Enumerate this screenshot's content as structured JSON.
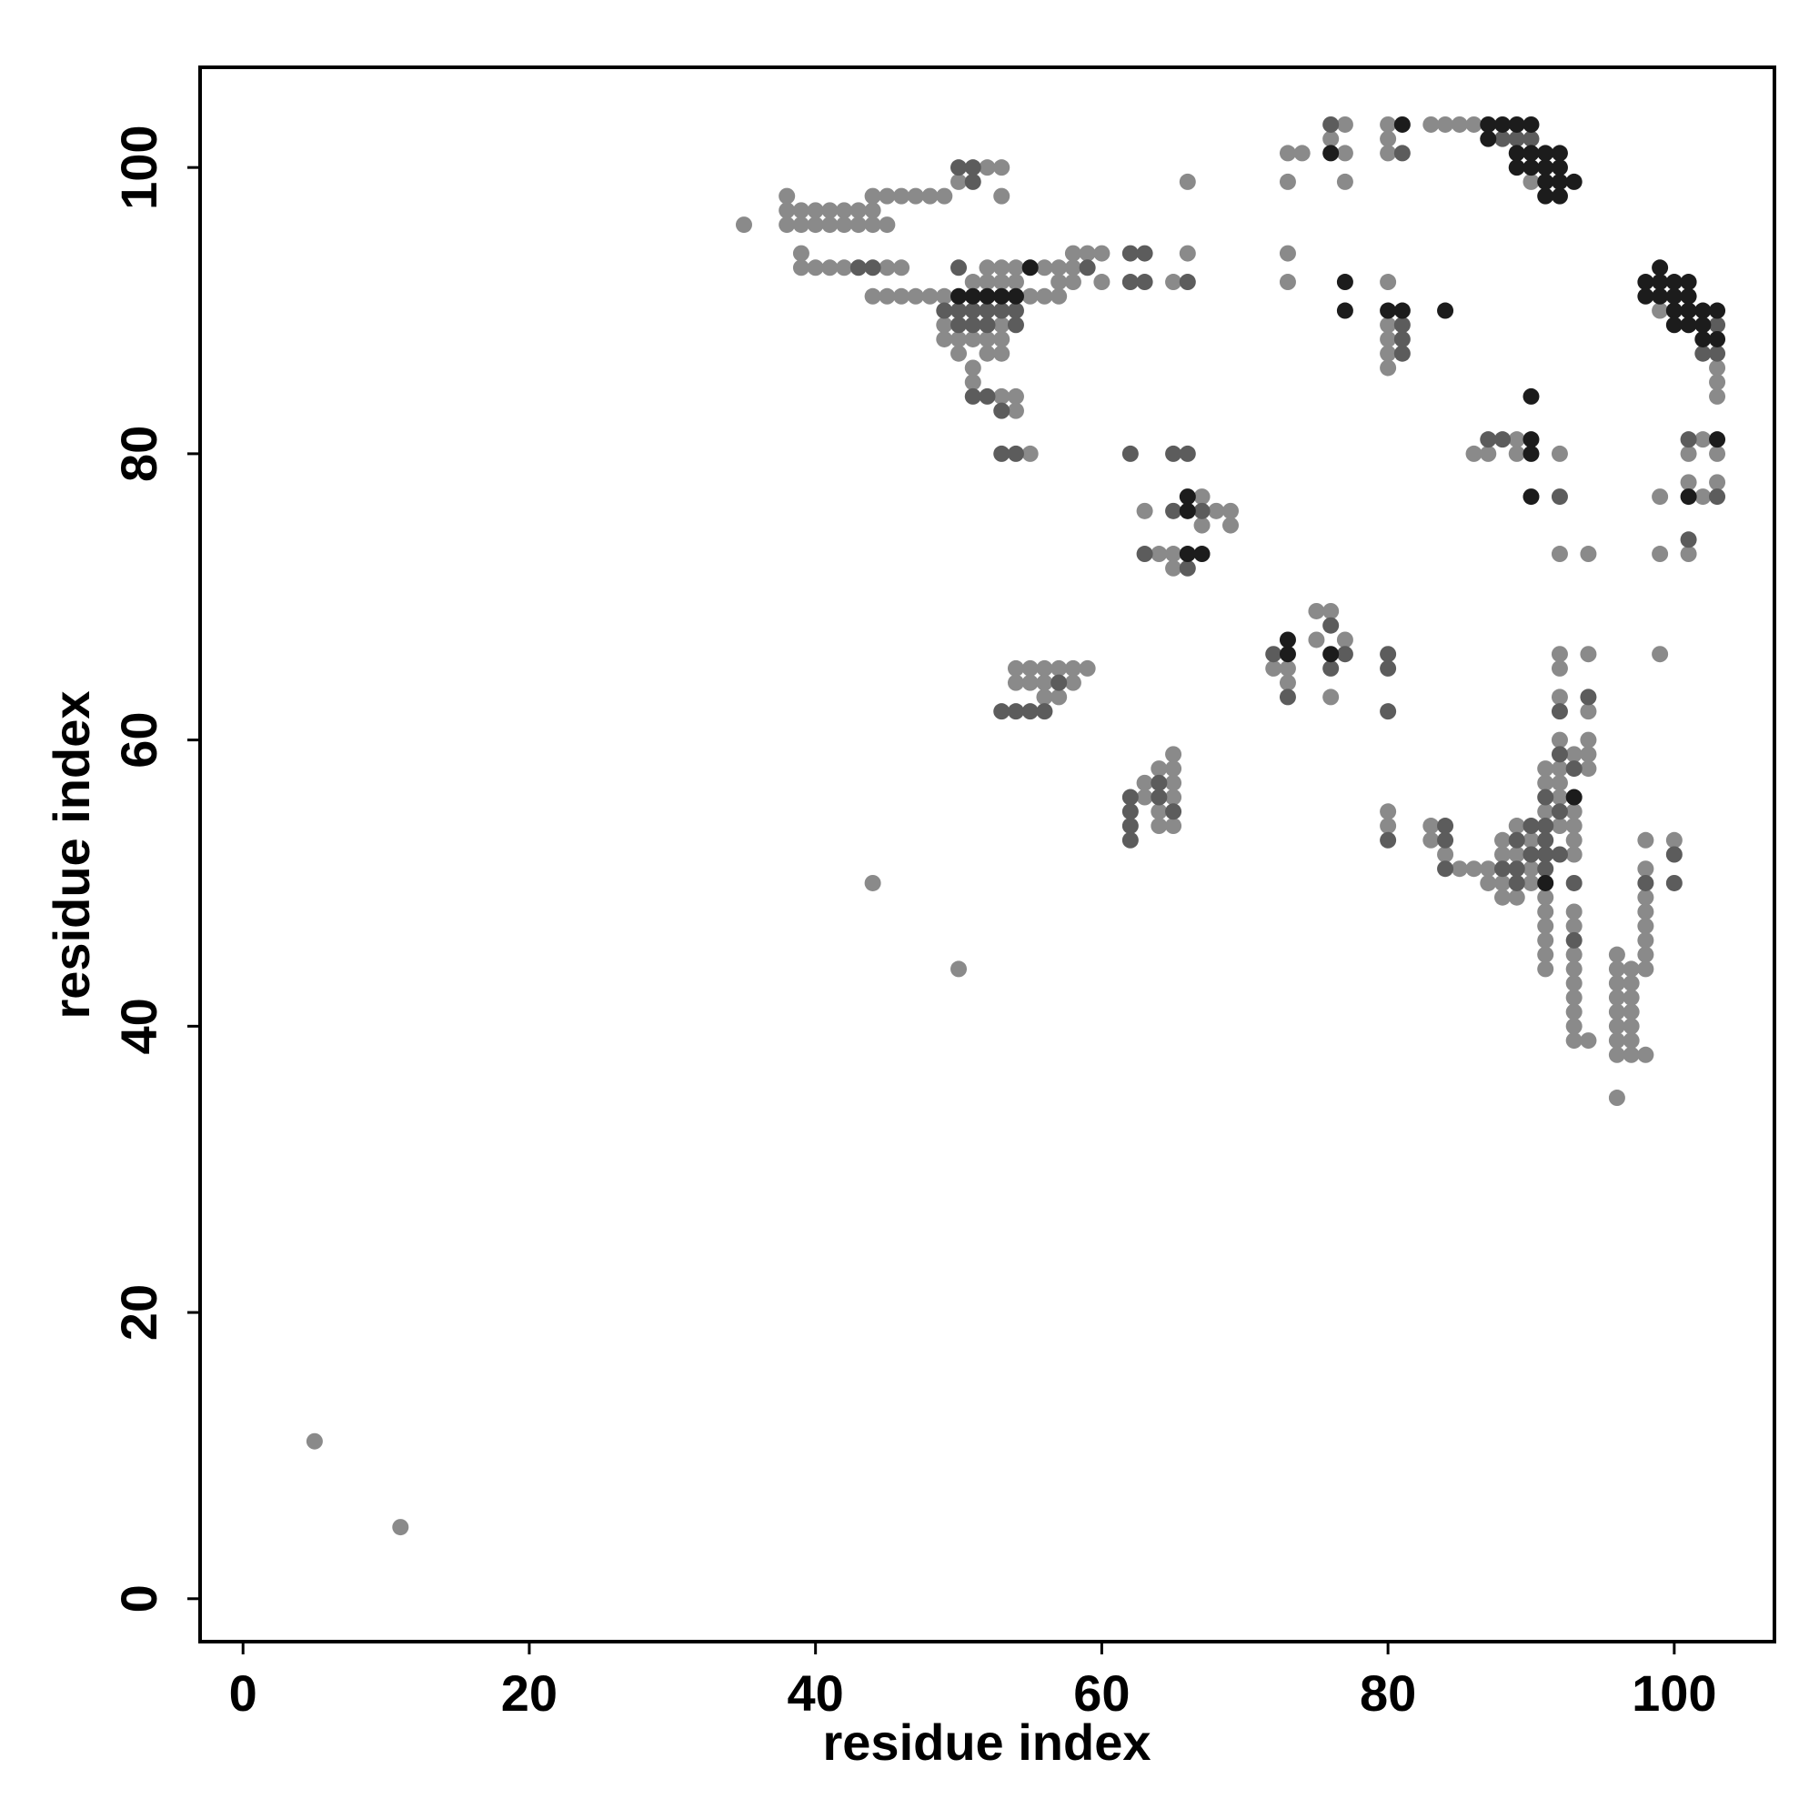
{
  "chart_data": {
    "type": "scatter",
    "x_label": "residue index",
    "y_label": "residue index",
    "xlim": [
      -3,
      107
    ],
    "ylim": [
      -3,
      107
    ],
    "xticks": [
      0,
      20,
      40,
      60,
      80,
      100
    ],
    "yticks": [
      0,
      20,
      40,
      60,
      80,
      100
    ],
    "series": [
      {
        "color": "#8a8a8a",
        "x": [
          5,
          11,
          44,
          50,
          35,
          96,
          38,
          44,
          45,
          46,
          47,
          48,
          49,
          53,
          38,
          39,
          40,
          41,
          42,
          43,
          44,
          38,
          39,
          40,
          41,
          42,
          43,
          44,
          45,
          50,
          52,
          53,
          39,
          58,
          59,
          60,
          66,
          39,
          40,
          41,
          42,
          45,
          46,
          52,
          53,
          54,
          56,
          57,
          58,
          51,
          52,
          53,
          54,
          57,
          58,
          60,
          65,
          44,
          45,
          46,
          47,
          48,
          49,
          55,
          56,
          57,
          49,
          53,
          49,
          50,
          51,
          52,
          53,
          50,
          52,
          53,
          51,
          51,
          53,
          54,
          54,
          55,
          63,
          68,
          69,
          67,
          67,
          69,
          64,
          65,
          65,
          54,
          55,
          56,
          57,
          58,
          59,
          54,
          55,
          56,
          58,
          56,
          57,
          65,
          64,
          65,
          63,
          65,
          63,
          65,
          64,
          64,
          65,
          77,
          80,
          83,
          84,
          85,
          86,
          76,
          80,
          73,
          74,
          77,
          80,
          66,
          73,
          77,
          90,
          73,
          73,
          80,
          80,
          80,
          80,
          80,
          99,
          103,
          103,
          103,
          102,
          101,
          103,
          101,
          103,
          99,
          102,
          99,
          101,
          99,
          89,
          86,
          87,
          89,
          92,
          92,
          94,
          75,
          76,
          75,
          77,
          72,
          73,
          73,
          76,
          92,
          94,
          92,
          92,
          94,
          92,
          94,
          93,
          94,
          91,
          92,
          94,
          91,
          92,
          92,
          80,
          91,
          93,
          80,
          83,
          89,
          92,
          93,
          83,
          88,
          90,
          93,
          98,
          100,
          84,
          88,
          89,
          93,
          85,
          86,
          87,
          90,
          98,
          87,
          88,
          90,
          88,
          89,
          91,
          98,
          91,
          93,
          98,
          91,
          93,
          98,
          91,
          98,
          91,
          93,
          96,
          98,
          91,
          93,
          96,
          97,
          98,
          93,
          96,
          97,
          93,
          96,
          97,
          93,
          96,
          97,
          93,
          96,
          97,
          93,
          94,
          96,
          97,
          96,
          97,
          98
        ],
        "y": [
          11,
          5,
          50,
          44,
          96,
          35,
          98,
          98,
          98,
          98,
          98,
          98,
          98,
          98,
          97,
          97,
          97,
          97,
          97,
          97,
          97,
          96,
          96,
          96,
          96,
          96,
          96,
          96,
          96,
          99,
          100,
          100,
          94,
          94,
          94,
          94,
          94,
          93,
          93,
          93,
          93,
          93,
          93,
          93,
          93,
          93,
          93,
          93,
          93,
          92,
          92,
          92,
          92,
          92,
          92,
          92,
          92,
          91,
          91,
          91,
          91,
          91,
          91,
          91,
          91,
          91,
          89,
          89,
          88,
          88,
          88,
          88,
          88,
          87,
          87,
          87,
          86,
          85,
          84,
          84,
          83,
          80,
          76,
          76,
          76,
          77,
          75,
          75,
          73,
          73,
          72,
          65,
          65,
          65,
          65,
          65,
          65,
          64,
          64,
          64,
          64,
          63,
          63,
          59,
          58,
          58,
          57,
          57,
          56,
          56,
          55,
          54,
          54,
          103,
          103,
          103,
          103,
          103,
          103,
          102,
          102,
          101,
          101,
          101,
          101,
          99,
          99,
          99,
          99,
          94,
          92,
          92,
          89,
          88,
          87,
          86,
          90,
          86,
          85,
          84,
          81,
          80,
          80,
          78,
          78,
          77,
          77,
          73,
          73,
          66,
          81,
          80,
          80,
          80,
          80,
          73,
          73,
          69,
          69,
          67,
          67,
          65,
          65,
          64,
          63,
          66,
          66,
          65,
          63,
          62,
          60,
          60,
          59,
          59,
          58,
          58,
          58,
          57,
          57,
          56,
          55,
          55,
          55,
          54,
          54,
          54,
          54,
          54,
          53,
          53,
          53,
          53,
          53,
          53,
          52,
          52,
          52,
          52,
          51,
          51,
          51,
          51,
          51,
          50,
          50,
          50,
          49,
          49,
          49,
          49,
          48,
          48,
          48,
          47,
          47,
          47,
          46,
          46,
          45,
          45,
          45,
          45,
          44,
          44,
          44,
          44,
          44,
          43,
          43,
          43,
          42,
          42,
          42,
          41,
          41,
          41,
          40,
          40,
          40,
          39,
          39,
          39,
          39,
          38,
          38,
          38
        ]
      },
      {
        "color": "#5c5c5c",
        "x": [
          51,
          50,
          51,
          62,
          63,
          43,
          44,
          50,
          59,
          62,
          63,
          66,
          49,
          50,
          51,
          52,
          53,
          54,
          50,
          51,
          52,
          54,
          51,
          52,
          53,
          53,
          54,
          62,
          65,
          66,
          65,
          67,
          63,
          66,
          57,
          53,
          54,
          55,
          56,
          64,
          62,
          64,
          62,
          65,
          62,
          62,
          76,
          88,
          89,
          90,
          81,
          81,
          103,
          81,
          81,
          102,
          103,
          87,
          88,
          101,
          92,
          103,
          101,
          76,
          72,
          77,
          80,
          76,
          80,
          73,
          80,
          94,
          92,
          92,
          93,
          91,
          92,
          84,
          90,
          91,
          80,
          84,
          89,
          91,
          90,
          91,
          92,
          100,
          84,
          88,
          89,
          91,
          89,
          93,
          98,
          100,
          93
        ],
        "y": [
          99,
          100,
          100,
          94,
          94,
          93,
          93,
          93,
          93,
          92,
          92,
          92,
          90,
          90,
          90,
          90,
          90,
          90,
          89,
          89,
          89,
          89,
          84,
          84,
          83,
          80,
          80,
          80,
          80,
          80,
          76,
          76,
          73,
          72,
          64,
          62,
          62,
          62,
          62,
          57,
          56,
          56,
          55,
          55,
          54,
          53,
          103,
          102,
          102,
          102,
          101,
          89,
          89,
          88,
          87,
          87,
          87,
          81,
          81,
          81,
          77,
          77,
          74,
          68,
          66,
          66,
          66,
          65,
          65,
          63,
          62,
          63,
          62,
          59,
          58,
          56,
          55,
          54,
          54,
          54,
          53,
          53,
          53,
          53,
          52,
          52,
          52,
          52,
          51,
          51,
          51,
          51,
          50,
          50,
          50,
          50,
          46
        ]
      },
      {
        "color": "#1c1c1c",
        "x": [
          55,
          50,
          51,
          52,
          53,
          54,
          66,
          66,
          66,
          67,
          81,
          87,
          88,
          89,
          90,
          87,
          76,
          89,
          90,
          91,
          92,
          89,
          90,
          91,
          92,
          91,
          92,
          93,
          91,
          92,
          77,
          77,
          80,
          81,
          84,
          99,
          98,
          99,
          100,
          101,
          98,
          99,
          100,
          101,
          100,
          101,
          102,
          103,
          100,
          101,
          102,
          102,
          103,
          103,
          101,
          90,
          90,
          90,
          90,
          73,
          73,
          76,
          93,
          91
        ],
        "y": [
          93,
          91,
          91,
          91,
          91,
          91,
          77,
          76,
          73,
          73,
          103,
          103,
          103,
          103,
          103,
          102,
          101,
          101,
          101,
          101,
          101,
          100,
          100,
          100,
          100,
          99,
          99,
          99,
          98,
          98,
          92,
          90,
          90,
          90,
          90,
          93,
          92,
          92,
          92,
          92,
          91,
          91,
          91,
          91,
          90,
          90,
          90,
          90,
          89,
          89,
          89,
          88,
          88,
          81,
          77,
          84,
          81,
          80,
          77,
          67,
          66,
          66,
          56,
          50
        ]
      }
    ]
  }
}
